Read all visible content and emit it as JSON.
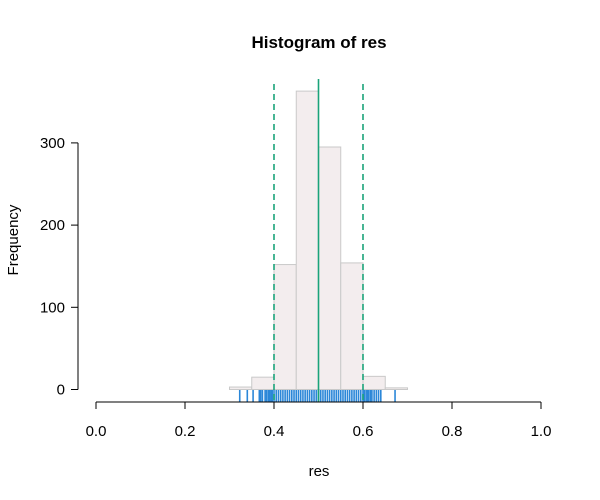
{
  "chart_data": {
    "type": "bar",
    "title": "Histogram of res",
    "xlabel": "res",
    "ylabel": "Frequency",
    "xlim": [
      0,
      1
    ],
    "ylim": [
      0,
      360
    ],
    "x_ticks": [
      0.0,
      0.2,
      0.4,
      0.6,
      0.8,
      1.0
    ],
    "x_tick_labels": [
      "0.0",
      "0.2",
      "0.4",
      "0.6",
      "0.8",
      "1.0"
    ],
    "y_ticks": [
      0,
      100,
      200,
      300
    ],
    "y_tick_labels": [
      "0",
      "100",
      "200",
      "300"
    ],
    "grid": false,
    "bins": [
      {
        "start": 0.3,
        "end": 0.35,
        "count": 3
      },
      {
        "start": 0.35,
        "end": 0.4,
        "count": 15
      },
      {
        "start": 0.4,
        "end": 0.45,
        "count": 152
      },
      {
        "start": 0.45,
        "end": 0.5,
        "count": 363
      },
      {
        "start": 0.5,
        "end": 0.55,
        "count": 295
      },
      {
        "start": 0.55,
        "end": 0.6,
        "count": 154
      },
      {
        "start": 0.6,
        "end": 0.65,
        "count": 16
      },
      {
        "start": 0.65,
        "end": 0.7,
        "count": 2
      }
    ],
    "bar_fill": "#f3edee",
    "bar_border": "#c9c9c9",
    "rug_color": "#2b87d8",
    "rug_values": [
      0.323,
      0.34,
      0.353,
      0.367,
      0.37,
      0.374,
      0.38,
      0.383,
      0.387,
      0.39,
      0.393,
      0.396,
      0.4,
      0.405,
      0.41,
      0.415,
      0.42,
      0.425,
      0.43,
      0.435,
      0.44,
      0.445,
      0.45,
      0.455,
      0.46,
      0.465,
      0.47,
      0.475,
      0.48,
      0.485,
      0.49,
      0.495,
      0.5,
      0.505,
      0.51,
      0.515,
      0.52,
      0.525,
      0.53,
      0.535,
      0.54,
      0.545,
      0.55,
      0.555,
      0.56,
      0.565,
      0.57,
      0.575,
      0.58,
      0.585,
      0.59,
      0.595,
      0.6,
      0.603,
      0.607,
      0.61,
      0.613,
      0.617,
      0.62,
      0.625,
      0.63,
      0.635,
      0.64,
      0.672
    ],
    "reference_lines": [
      {
        "x": 0.5,
        "style": "solid",
        "color": "#1aa37a"
      },
      {
        "x": 0.4,
        "style": "dashed",
        "color": "#1aa37a"
      },
      {
        "x": 0.6,
        "style": "dashed",
        "color": "#1aa37a"
      }
    ]
  }
}
